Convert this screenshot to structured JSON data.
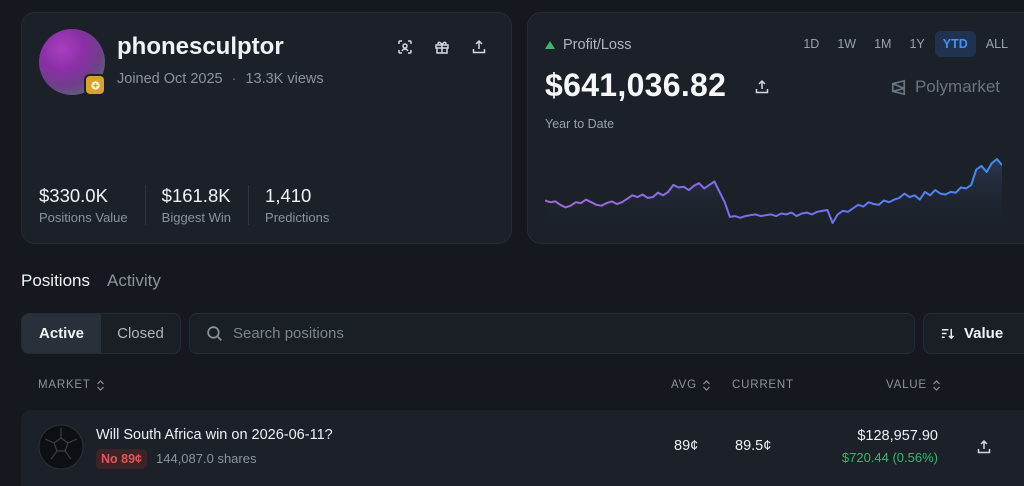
{
  "profile": {
    "username": "phonesculptor",
    "joined": "Joined Oct 2025",
    "views": "13.3K views",
    "stats": [
      {
        "value": "$330.0K",
        "label": "Positions Value"
      },
      {
        "value": "$161.8K",
        "label": "Biggest Win"
      },
      {
        "value": "1,410",
        "label": "Predictions"
      }
    ]
  },
  "pnl": {
    "label": "Profit/Loss",
    "value": "$641,036.82",
    "period_label": "Year to Date",
    "brand": "Polymarket",
    "ranges": [
      "1D",
      "1W",
      "1M",
      "1Y",
      "YTD",
      "ALL"
    ],
    "active_range": "YTD",
    "accent": "#4c8ff0"
  },
  "chart_data": {
    "type": "area",
    "series_values": [
      52,
      50,
      51,
      47,
      44,
      46,
      50,
      49,
      53,
      50,
      47,
      46,
      49,
      51,
      48,
      50,
      54,
      58,
      56,
      59,
      55,
      56,
      61,
      58,
      62,
      70,
      67,
      68,
      64,
      69,
      72,
      66,
      70,
      74,
      62,
      50,
      33,
      34,
      32,
      34,
      35,
      36,
      34,
      35,
      36,
      34,
      37,
      36,
      38,
      34,
      37,
      38,
      36,
      39,
      40,
      41,
      26,
      36,
      40,
      39,
      43,
      47,
      45,
      50,
      48,
      47,
      52,
      50,
      53,
      55,
      60,
      56,
      58,
      53,
      62,
      58,
      64,
      60,
      59,
      62,
      61,
      67,
      66,
      70,
      88,
      92,
      85,
      95,
      100,
      93
    ],
    "grid": false
  },
  "tabs": [
    "Positions",
    "Activity"
  ],
  "active_tab": "Positions",
  "filters": {
    "active": "Active",
    "closed": "Closed"
  },
  "search": {
    "placeholder": "Search positions"
  },
  "sort": {
    "label": "Value"
  },
  "table": {
    "headers": {
      "market": "MARKET",
      "avg": "AVG",
      "current": "CURRENT",
      "value": "VALUE"
    },
    "rows": [
      {
        "question": "Will South Africa win on 2026-06-11?",
        "outcome": "No 89¢",
        "shares": "144,087.0 shares",
        "avg": "89¢",
        "current": "89.5¢",
        "value": "$128,957.90",
        "gain": "$720.44 (0.56%)"
      }
    ]
  },
  "colors": {
    "positive": "#3fb56b",
    "negative": "#e0575a",
    "badge": "#d9a132"
  }
}
